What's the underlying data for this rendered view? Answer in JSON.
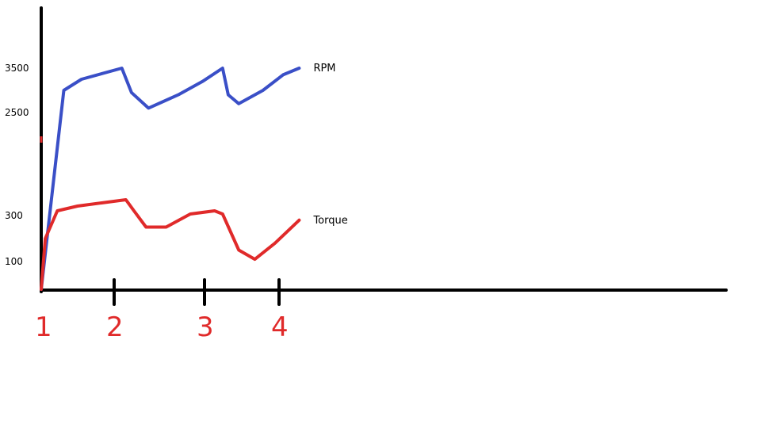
{
  "chart_data": {
    "type": "line",
    "x_ticks": [
      "1",
      "2",
      "3",
      "4"
    ],
    "xlim": [
      1,
      10.5
    ],
    "y_ticks": [
      {
        "label": "3500",
        "value": 3500,
        "color": "#000000"
      },
      {
        "label": "2500",
        "value": 2500,
        "color": "#3a4fc7"
      },
      {
        "label": "300",
        "value": 300,
        "color": "#000000"
      },
      {
        "label": "100",
        "value": 100,
        "color": "#000000"
      }
    ],
    "series": [
      {
        "name": "RPM",
        "color": "#3a4fc7",
        "points": [
          [
            1.0,
            0
          ],
          [
            1.28,
            3000
          ],
          [
            1.5,
            3250
          ],
          [
            2.0,
            3500
          ],
          [
            2.12,
            2950
          ],
          [
            2.33,
            2600
          ],
          [
            2.7,
            2900
          ],
          [
            3.0,
            3200
          ],
          [
            3.25,
            3500
          ],
          [
            3.32,
            2900
          ],
          [
            3.45,
            2700
          ],
          [
            3.75,
            3000
          ],
          [
            4.0,
            3350
          ],
          [
            4.2,
            3500
          ]
        ]
      },
      {
        "name": "Torque",
        "color": "#e02a2a",
        "points": [
          [
            1.0,
            0
          ],
          [
            1.05,
            200
          ],
          [
            1.2,
            450
          ],
          [
            1.45,
            600
          ],
          [
            1.75,
            700
          ],
          [
            2.05,
            800
          ],
          [
            2.15,
            450
          ],
          [
            2.3,
            250
          ],
          [
            2.55,
            250
          ],
          [
            2.85,
            350
          ],
          [
            3.15,
            450
          ],
          [
            3.25,
            350
          ],
          [
            3.45,
            150
          ],
          [
            3.65,
            110
          ],
          [
            3.9,
            180
          ],
          [
            4.2,
            280
          ]
        ]
      }
    ]
  }
}
